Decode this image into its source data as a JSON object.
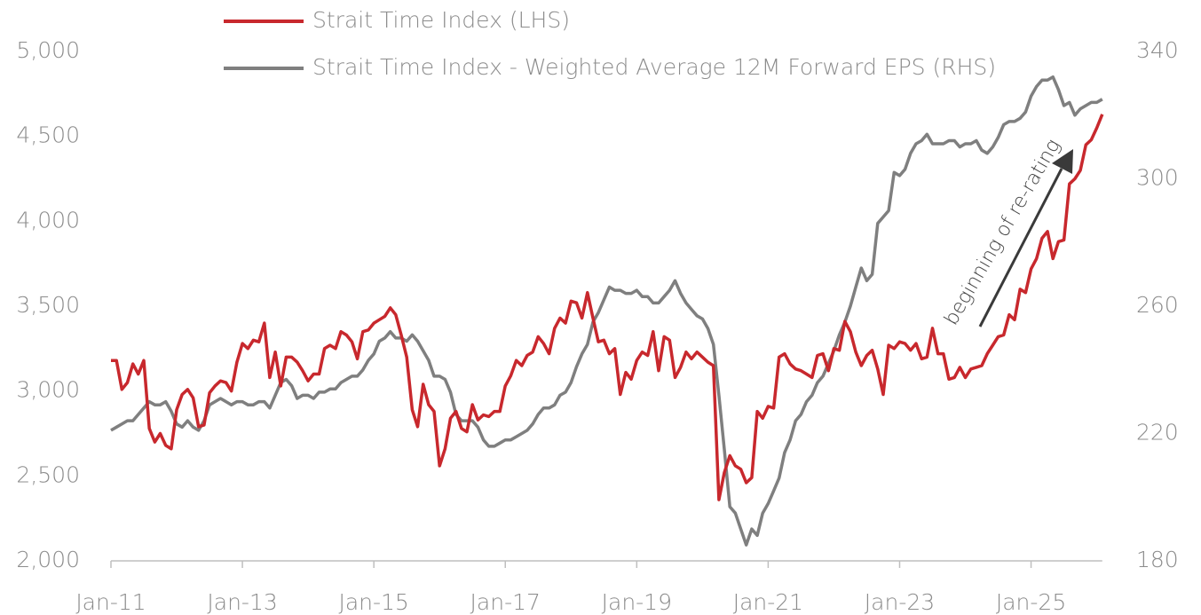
{
  "chart_data": {
    "type": "line",
    "categories": [
      "Jan-11",
      null,
      null,
      null,
      null,
      null,
      null,
      null,
      null,
      null,
      null,
      null,
      null,
      null,
      null,
      null,
      null,
      null,
      null,
      null,
      null,
      null,
      null,
      null,
      "Jan-13",
      null,
      null,
      null,
      null,
      null,
      null,
      null,
      null,
      null,
      null,
      null,
      null,
      null,
      null,
      null,
      null,
      null,
      null,
      null,
      null,
      null,
      null,
      null,
      "Jan-15",
      null,
      null,
      null,
      null,
      null,
      null,
      null,
      null,
      null,
      null,
      null,
      null,
      null,
      null,
      null,
      null,
      null,
      null,
      null,
      null,
      null,
      null,
      null,
      "Jan-17",
      null,
      null,
      null,
      null,
      null,
      null,
      null,
      null,
      null,
      null,
      null,
      null,
      null,
      null,
      null,
      null,
      null,
      null,
      null,
      null,
      null,
      null,
      null,
      "Jan-19",
      null,
      null,
      null,
      null,
      null,
      null,
      null,
      null,
      null,
      null,
      null,
      null,
      null,
      null,
      null,
      null,
      null,
      null,
      null,
      null,
      null,
      null,
      null,
      "Jan-21",
      null,
      null,
      null,
      null,
      null,
      null,
      null,
      null,
      null,
      null,
      null,
      null,
      null,
      null,
      null,
      null,
      null,
      null,
      null,
      null,
      null,
      null,
      null,
      "Jan-23",
      null,
      null,
      null,
      null,
      null,
      null,
      null,
      null,
      null,
      null,
      null,
      null,
      null,
      null,
      null,
      null,
      null,
      null,
      null,
      null,
      null,
      null,
      null,
      "Jan-25",
      null,
      null,
      null,
      null,
      null,
      null,
      null,
      null,
      null,
      null,
      null,
      null,
      null
    ],
    "series": [
      {
        "name": "Strait Time Index (LHS)",
        "color": "#c8282d",
        "values": [
          3180,
          3180,
          3010,
          3050,
          3160,
          3100,
          3180,
          2780,
          2700,
          2750,
          2680,
          2660,
          2890,
          2980,
          3010,
          2960,
          2790,
          2800,
          2990,
          3030,
          3060,
          3050,
          3000,
          3170,
          3280,
          3250,
          3300,
          3290,
          3400,
          3080,
          3230,
          3030,
          3200,
          3200,
          3170,
          3120,
          3060,
          3100,
          3100,
          3250,
          3270,
          3250,
          3350,
          3330,
          3290,
          3190,
          3350,
          3360,
          3400,
          3420,
          3440,
          3490,
          3450,
          3330,
          3200,
          2890,
          2790,
          3040,
          2920,
          2880,
          2560,
          2660,
          2840,
          2880,
          2780,
          2760,
          2920,
          2830,
          2860,
          2850,
          2880,
          2880,
          3030,
          3090,
          3180,
          3150,
          3210,
          3230,
          3320,
          3280,
          3220,
          3370,
          3430,
          3400,
          3530,
          3520,
          3430,
          3580,
          3430,
          3290,
          3300,
          3220,
          3250,
          2980,
          3110,
          3070,
          3180,
          3230,
          3210,
          3350,
          3120,
          3320,
          3300,
          3080,
          3140,
          3230,
          3190,
          3230,
          3200,
          3170,
          3150,
          2360,
          2520,
          2620,
          2560,
          2540,
          2460,
          2490,
          2880,
          2840,
          2910,
          2900,
          3200,
          3220,
          3160,
          3130,
          3120,
          3100,
          3080,
          3210,
          3220,
          3120,
          3250,
          3240,
          3410,
          3350,
          3230,
          3150,
          3210,
          3240,
          3130,
          2980,
          3270,
          3250,
          3290,
          3280,
          3240,
          3280,
          3190,
          3200,
          3370,
          3220,
          3220,
          3070,
          3080,
          3140,
          3080,
          3130,
          3140,
          3150,
          3220,
          3270,
          3320,
          3330,
          3450,
          3420,
          3600,
          3580,
          3720,
          3780,
          3900,
          3940,
          3780,
          3880,
          3890,
          4220,
          4250,
          4300,
          4450,
          4480,
          4550,
          4630
        ]
      },
      {
        "name": "Strait Time Index - Weighted Average 12M Forward EPS (RHS)",
        "color": "#7f7f7f",
        "axis": "y2",
        "values": [
          221,
          222,
          223,
          224,
          224,
          226,
          228,
          230,
          229,
          229,
          230,
          227,
          223,
          222,
          224,
          222,
          221,
          224,
          229,
          230,
          231,
          230,
          229,
          230,
          230,
          229,
          229,
          230,
          230,
          228,
          232,
          236,
          237,
          235,
          231,
          232,
          232,
          231,
          233,
          233,
          234,
          234,
          236,
          237,
          238,
          238,
          240,
          243,
          245,
          249,
          250,
          252,
          250,
          250,
          249,
          251,
          249,
          246,
          243,
          238,
          238,
          237,
          233,
          226,
          224,
          224,
          224,
          222,
          218,
          216,
          216,
          217,
          218,
          218,
          219,
          220,
          221,
          223,
          226,
          228,
          228,
          229,
          232,
          233,
          236,
          241,
          245,
          248,
          255,
          258,
          262,
          266,
          265,
          265,
          264,
          264,
          265,
          263,
          263,
          261,
          261,
          263,
          265,
          268,
          264,
          261,
          259,
          257,
          256,
          253,
          248,
          232,
          215,
          197,
          195,
          190,
          185,
          190,
          188,
          195,
          198,
          202,
          206,
          214,
          218,
          224,
          226,
          230,
          232,
          236,
          238,
          242,
          246,
          251,
          255,
          260,
          266,
          272,
          268,
          270,
          286,
          288,
          290,
          302,
          301,
          303,
          308,
          311,
          312,
          314,
          311,
          311,
          311,
          312,
          312,
          310,
          311,
          311,
          312,
          309,
          308,
          310,
          313,
          317,
          318,
          318,
          319,
          321,
          326,
          329,
          331,
          331,
          332,
          328,
          323,
          324,
          320,
          322,
          323,
          324,
          324,
          325
        ]
      }
    ],
    "ylim": [
      2000,
      5000
    ],
    "yticks": [
      {
        "value": 2000,
        "label": "2,000"
      },
      {
        "value": 2500,
        "label": "2,500"
      },
      {
        "value": 3000,
        "label": "3,000"
      },
      {
        "value": 3500,
        "label": "3,500"
      },
      {
        "value": 4000,
        "label": "4,000"
      },
      {
        "value": 4500,
        "label": "4,500"
      },
      {
        "value": 5000,
        "label": "5,000"
      }
    ],
    "y2lim": [
      180,
      340
    ],
    "y2ticks": [
      180,
      220,
      260,
      300,
      340
    ],
    "annotation": "beginning of re-rating",
    "grid": false
  }
}
